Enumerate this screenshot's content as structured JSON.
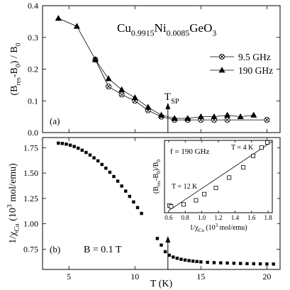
{
  "figure": {
    "compound": {
      "base": "Cu",
      "sub1": "0.9915",
      "mid": "Ni",
      "sub2": "0.0085",
      "tail": "GeO",
      "sub3": "3"
    },
    "tsp": {
      "base": "T",
      "sub": "SP",
      "x": 12.5
    }
  },
  "chart_data": [
    {
      "type": "line",
      "panel": "(a)",
      "xlabel": "T (K)",
      "ylabel": {
        "base": "(B",
        "sub1": "res",
        "mid": "-B",
        "sub2": "0",
        "tail": ") / B",
        "sub3": "0"
      },
      "xlim": [
        3,
        21
      ],
      "ylim": [
        0,
        0.4
      ],
      "xticks": [
        5,
        10,
        15,
        20
      ],
      "yticks": [
        0.0,
        0.1,
        0.2,
        0.3,
        0.4
      ],
      "ytick_labels": [
        "0.0",
        "0.1",
        "0.2",
        "0.3",
        "0.4"
      ],
      "legend": "right",
      "series": [
        {
          "name": "9.5 GHz",
          "marker": "circle-cross",
          "x": [
            7.0,
            8.0,
            9.0,
            10.0,
            11.0,
            12.0,
            13.0,
            14.0,
            15.0,
            16.0,
            17.0,
            20.0
          ],
          "y": [
            0.23,
            0.145,
            0.12,
            0.1,
            0.07,
            0.05,
            0.04,
            0.04,
            0.04,
            0.04,
            0.04,
            0.04
          ]
        },
        {
          "name": "190 GHz",
          "marker": "filled-triangle",
          "x": [
            4.2,
            5.6,
            7.0,
            8.0,
            9.0,
            10.0,
            11.0,
            12.0,
            13.0,
            14.0,
            15.0,
            16.0,
            17.0,
            18.0,
            19.0
          ],
          "y": [
            0.36,
            0.335,
            0.23,
            0.17,
            0.135,
            0.11,
            0.08,
            0.055,
            0.045,
            0.045,
            0.05,
            0.05,
            0.055,
            0.05,
            0.055
          ]
        }
      ]
    },
    {
      "type": "scatter",
      "panel": "(b)",
      "xlabel": "T (K)",
      "ylabel": {
        "base": "1/χ",
        "sub1": "Cu",
        "mid": " (10",
        "sup": "3",
        "tail": " mol/emu)"
      },
      "annotation": "B = 0.1 T",
      "xlim": [
        3,
        21
      ],
      "ylim": [
        0.55,
        1.85
      ],
      "xticks": [
        5,
        10,
        15,
        20
      ],
      "yticks": [
        0.75,
        1.0,
        1.25,
        1.5,
        1.75
      ],
      "ytick_labels": [
        "0.75",
        "1.00",
        "1.25",
        "1.50",
        "1.75"
      ],
      "series": [
        {
          "name": "",
          "marker": "filled-square",
          "x": [
            4.2,
            4.5,
            4.8,
            5.1,
            5.4,
            5.7,
            6.0,
            6.3,
            6.6,
            6.9,
            7.2,
            7.5,
            7.8,
            8.1,
            8.4,
            8.7,
            9.0,
            9.3,
            9.6,
            9.9,
            10.2,
            10.5,
            10.8,
            11.1,
            11.4,
            11.7,
            12.0,
            12.3,
            12.6,
            12.9,
            13.2,
            13.5,
            13.8,
            14.1,
            14.4,
            14.7,
            15.0,
            15.5,
            16.0,
            16.5,
            17.0,
            17.5,
            18.0,
            18.5,
            19.0,
            19.5,
            20.0,
            20.5
          ],
          "y": [
            1.795,
            1.792,
            1.785,
            1.775,
            1.762,
            1.745,
            1.725,
            1.703,
            1.678,
            1.65,
            1.62,
            1.585,
            1.548,
            1.508,
            1.466,
            1.42,
            1.372,
            1.322,
            1.27,
            1.215,
            1.16,
            1.102,
            1.043,
            0.983,
            0.92,
            0.855,
            0.79,
            0.725,
            0.69,
            0.672,
            0.66,
            0.65,
            0.643,
            0.637,
            0.632,
            0.628,
            0.624,
            0.62,
            0.617,
            0.615,
            0.613,
            0.611,
            0.609,
            0.607,
            0.606,
            0.605,
            0.604,
            0.603
          ]
        }
      ]
    },
    {
      "type": "scatter",
      "panel": "inset",
      "text": "f = 190 GHz",
      "xlabel": {
        "base": "1/χ",
        "sub1": "Cu",
        "mid": " (10",
        "sup": "3",
        "tail": " mol/emu)"
      },
      "ylabel": {
        "base": "(B",
        "sub1": "res",
        "mid": "-B",
        "sub2": "0",
        "tail": ")/B",
        "sub3": "0"
      },
      "xlim": [
        0.55,
        1.85
      ],
      "ylim": [
        0.02,
        0.37
      ],
      "xticks": [
        0.6,
        0.8,
        1.0,
        1.2,
        1.4,
        1.6,
        1.8
      ],
      "xtick_labels": [
        "0.6",
        "0.8",
        "1.0",
        "1.2",
        "1.4",
        "1.6",
        "1.8"
      ],
      "annotations": [
        {
          "text": "T = 4 K",
          "x": 1.8,
          "y": 0.36
        },
        {
          "text": "T = 12 K",
          "x": 0.62,
          "y": 0.05
        }
      ],
      "fit_line": {
        "x": [
          0.6,
          1.85
        ],
        "y": [
          0.03,
          0.365
        ]
      },
      "series": [
        {
          "name": "",
          "marker": "open-square",
          "x": [
            0.61,
            0.63,
            0.78,
            0.93,
            1.03,
            1.17,
            1.33,
            1.5,
            1.62,
            1.72,
            1.79
          ],
          "y": [
            0.055,
            0.05,
            0.06,
            0.08,
            0.11,
            0.14,
            0.19,
            0.24,
            0.295,
            0.335,
            0.36
          ]
        }
      ]
    }
  ]
}
